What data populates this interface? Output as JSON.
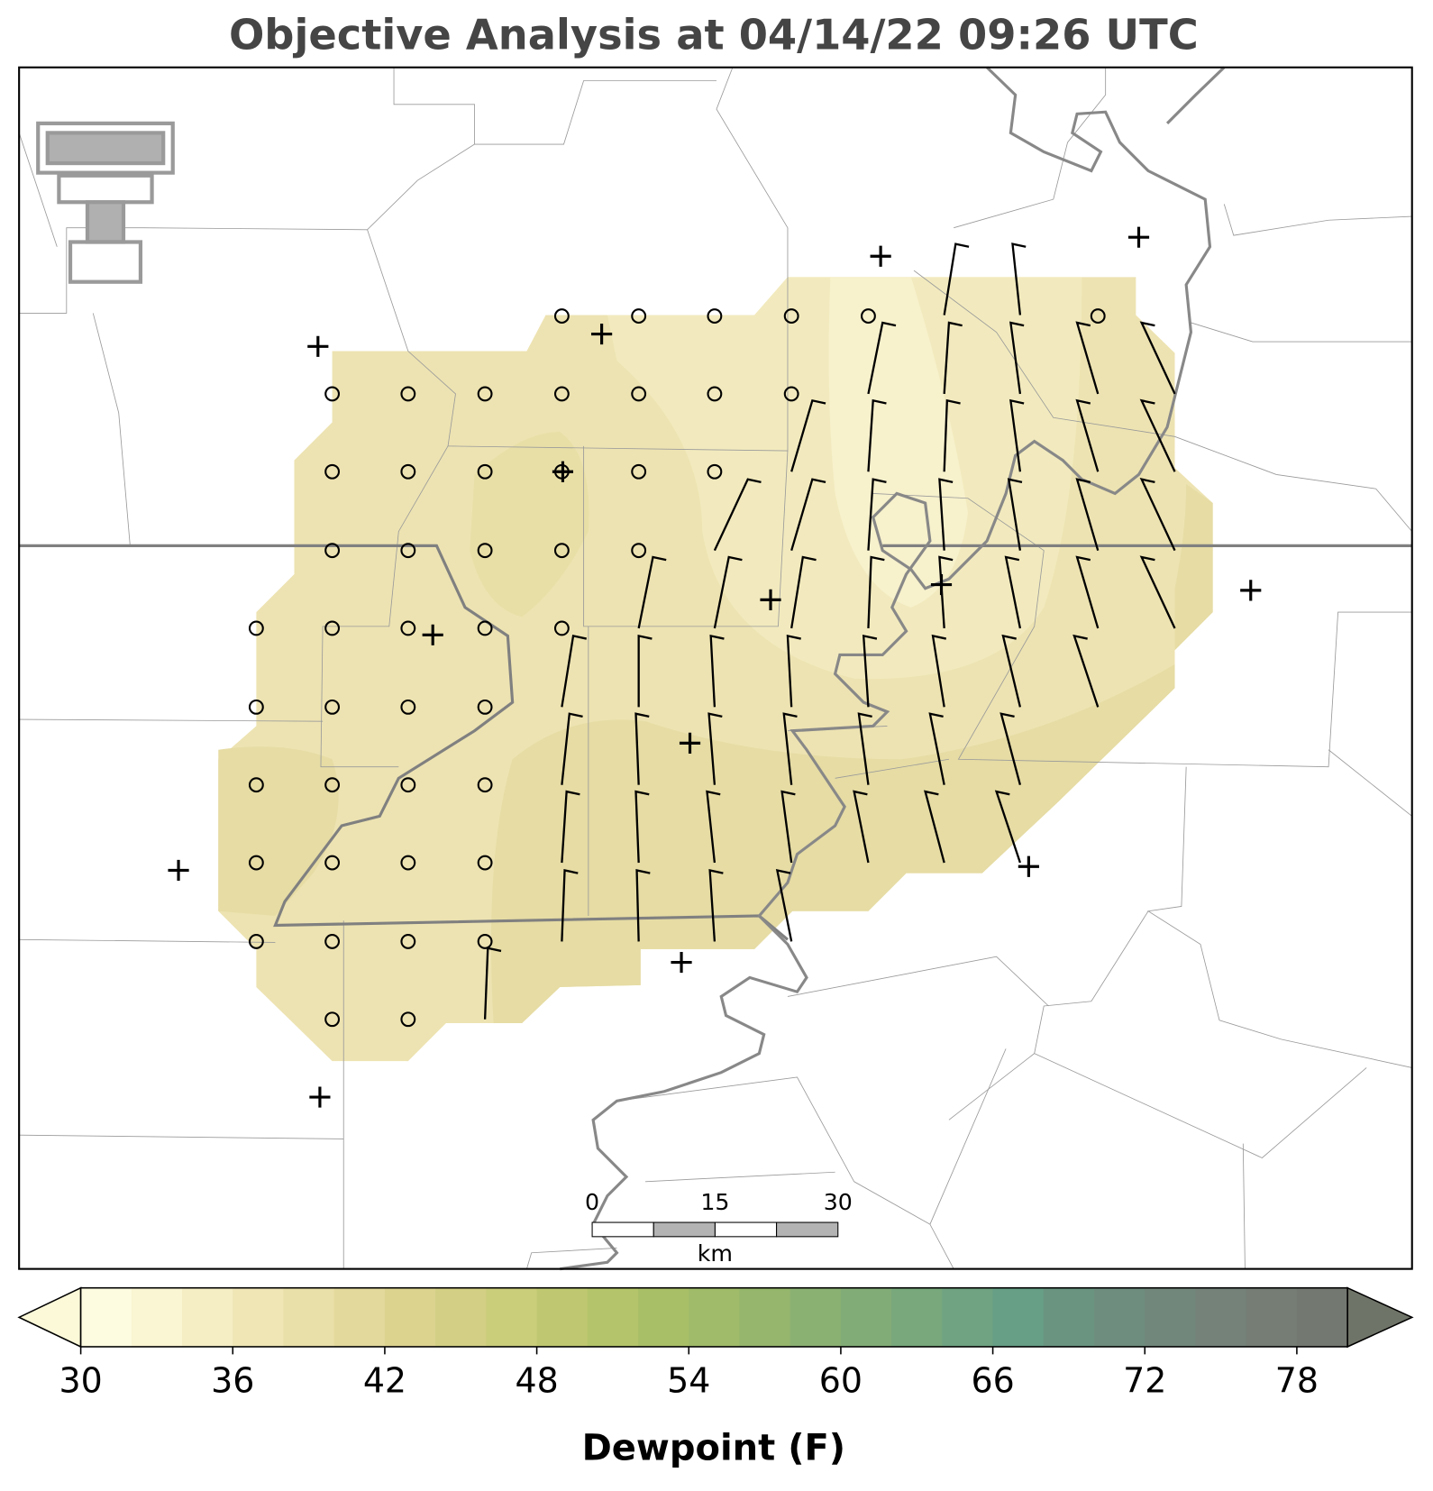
{
  "title": "Objective Analysis at 04/14/22 09:26 UTC",
  "colorbar": {
    "label": "Dewpoint (F)",
    "lim": [
      30,
      80
    ],
    "ticks": [
      30,
      36,
      42,
      48,
      54,
      60,
      66,
      72,
      78
    ],
    "colors": [
      "#fdfbe0",
      "#faf5d2",
      "#f5eec4",
      "#efe5b5",
      "#e9dfa8",
      "#e3d99c",
      "#dcd38f",
      "#d3cf84",
      "#cacd7a",
      "#bfc870",
      "#b4c46a",
      "#a9bf67",
      "#a0bb69",
      "#95b66c",
      "#8bb172",
      "#82ac77",
      "#78a87c",
      "#6fa382",
      "#669e86",
      "#6a9480",
      "#6e8d7e",
      "#72877c",
      "#74827a",
      "#757d75",
      "#737870"
    ],
    "under_color": "#fcf9d8",
    "over_color": "#6f7468"
  },
  "scale_bar": {
    "ticks": [
      0,
      15,
      30
    ],
    "unit": "km"
  }
}
